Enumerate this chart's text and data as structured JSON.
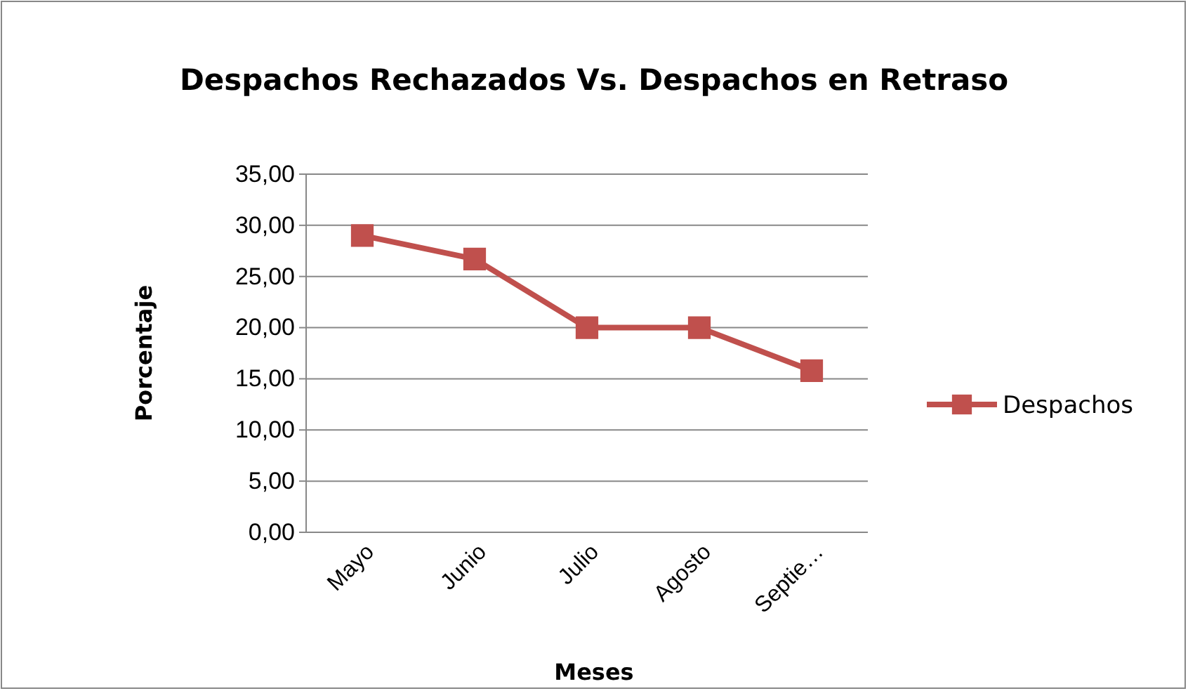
{
  "chart_data": {
    "type": "line",
    "title": "Despachos Rechazados Vs. Despachos en Retraso",
    "xlabel": "Meses",
    "ylabel": "Porcentaje",
    "categories": [
      "Mayo",
      "Junio",
      "Julio",
      "Agosto",
      "Septie…"
    ],
    "series": [
      {
        "name": "Despachos",
        "color": "#c0504d",
        "values": [
          29,
          26.7,
          20,
          20,
          15.8
        ]
      }
    ],
    "ylim": [
      0,
      35
    ],
    "yticks": [
      {
        "value": 0,
        "label": "0,00"
      },
      {
        "value": 5,
        "label": "5,00"
      },
      {
        "value": 10,
        "label": "10,00"
      },
      {
        "value": 15,
        "label": "15,00"
      },
      {
        "value": 20,
        "label": "20,00"
      },
      {
        "value": 25,
        "label": "25,00"
      },
      {
        "value": 30,
        "label": "30,00"
      },
      {
        "value": 35,
        "label": "35,00"
      }
    ],
    "grid": "y",
    "legend": "right",
    "marker": "square",
    "line_style": "solid"
  }
}
